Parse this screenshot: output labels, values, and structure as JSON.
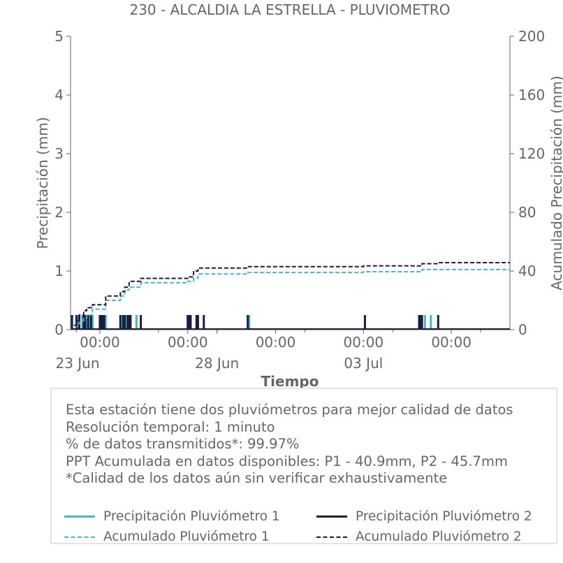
{
  "chart_data": {
    "type": "line",
    "title": "230 - ALCALDIA LA ESTRELLA - PLUVIOMETRO",
    "xlabel": "Tiempo",
    "ylabel": "Precipitación (mm)",
    "y2label": "Acumulado Precipitación (mm)",
    "ylim": [
      0,
      5
    ],
    "y2lim": [
      0,
      200
    ],
    "yticks": [
      "0",
      "1",
      "2",
      "3",
      "4",
      "5"
    ],
    "y2ticks": [
      "0",
      "40",
      "80",
      "120",
      "160",
      "200"
    ],
    "xlim": [
      0,
      15
    ],
    "xticks": [
      {
        "x": 1,
        "line1": "00:00",
        "line2": "23 Jun"
      },
      {
        "x": 4,
        "line1": "00:00",
        "line2": ""
      },
      {
        "x": 5,
        "line1": "",
        "line2": "28 Jun"
      },
      {
        "x": 7,
        "line1": "00:00",
        "line2": ""
      },
      {
        "x": 10,
        "line1": "00:00",
        "line2": "03 Jul"
      },
      {
        "x": 13,
        "line1": "00:00",
        "line2": ""
      }
    ],
    "grid": false,
    "legend_position": "bottom",
    "series": [
      {
        "name": "Precipitación Pluviómetro 1",
        "kind": "bars",
        "color": "#4ab3c5",
        "x": [
          0.05,
          0.25,
          0.4,
          0.55,
          0.65,
          0.75,
          1.2,
          1.75,
          1.9,
          2.0,
          2.25,
          4.0,
          4.1,
          4.35,
          6.1,
          12.1,
          12.3
        ],
        "values": [
          0.25,
          0.25,
          0.25,
          0.25,
          0.25,
          0.25,
          0.25,
          0.25,
          0.25,
          0.25,
          0.25,
          0.25,
          0.25,
          0.25,
          0.25,
          0.25,
          0.25
        ]
      },
      {
        "name": "Precipitación Pluviómetro 2",
        "kind": "bars",
        "color": "#1c1c3d",
        "x": [
          0.05,
          0.2,
          0.3,
          0.45,
          0.5,
          0.6,
          0.7,
          1.0,
          1.05,
          1.1,
          1.15,
          1.7,
          1.8,
          1.85,
          1.95,
          2.0,
          2.05,
          2.4,
          4.0,
          4.05,
          4.1,
          4.3,
          4.35,
          4.55,
          6.05,
          10.05,
          11.9,
          11.95,
          12.0,
          12.55
        ],
        "values": [
          0.25,
          0.25,
          0.25,
          0.25,
          0.25,
          0.25,
          0.25,
          0.25,
          0.25,
          0.25,
          0.25,
          0.25,
          0.25,
          0.25,
          0.25,
          0.25,
          0.25,
          0.25,
          0.25,
          0.25,
          0.25,
          0.25,
          0.25,
          0.25,
          0.25,
          0.25,
          0.25,
          0.25,
          0.25,
          0.25
        ]
      },
      {
        "name": "Acumulado Pluviómetro 1",
        "kind": "step",
        "axis": "y2",
        "color": "#4ab3c5",
        "x": [
          0.05,
          0.2,
          0.3,
          0.45,
          0.55,
          0.75,
          1.2,
          1.7,
          1.85,
          2.0,
          2.4,
          4.0,
          4.2,
          4.35,
          6.05,
          10.0,
          12.0,
          15.0
        ],
        "values": [
          2,
          4,
          6,
          8,
          10,
          14,
          20,
          23,
          27,
          29,
          32,
          33,
          35,
          38,
          39,
          39.5,
          41,
          41
        ]
      },
      {
        "name": "Acumulado Pluviómetro 2",
        "kind": "step",
        "axis": "y2",
        "color": "#1c1c3d",
        "x": [
          0.05,
          0.2,
          0.3,
          0.45,
          0.55,
          0.75,
          1.2,
          1.7,
          1.85,
          2.0,
          2.4,
          4.0,
          4.2,
          4.35,
          6.05,
          10.0,
          12.0,
          12.55,
          15.0
        ],
        "values": [
          3,
          6,
          10,
          13,
          15,
          17,
          23,
          26,
          29,
          33,
          35,
          36,
          40,
          42,
          43,
          43.5,
          45,
          45.7,
          45.7
        ]
      }
    ]
  },
  "info": {
    "lines": [
      "Esta estación tiene dos pluviómetros para mejor calidad de datos",
      "Resolución temporal: 1 minuto",
      "% de datos transmitidos*: 99.97%",
      "PPT Acumulada en datos disponibles: P1 - 40.9mm, P2 - 45.7mm",
      "*Calidad de los datos aún sin verificar exhaustivamente"
    ]
  },
  "legend": {
    "items": [
      {
        "label": "Precipitación Pluviómetro 1",
        "color": "#4ab3c5",
        "dash": false
      },
      {
        "label": "Precipitación Pluviómetro 2",
        "color": "#1c1c3d",
        "dash": false
      },
      {
        "label": "Acumulado Pluviómetro 1",
        "color": "#4ab3c5",
        "dash": true
      },
      {
        "label": "Acumulado Pluviómetro 2",
        "color": "#1c1c3d",
        "dash": true
      }
    ]
  }
}
